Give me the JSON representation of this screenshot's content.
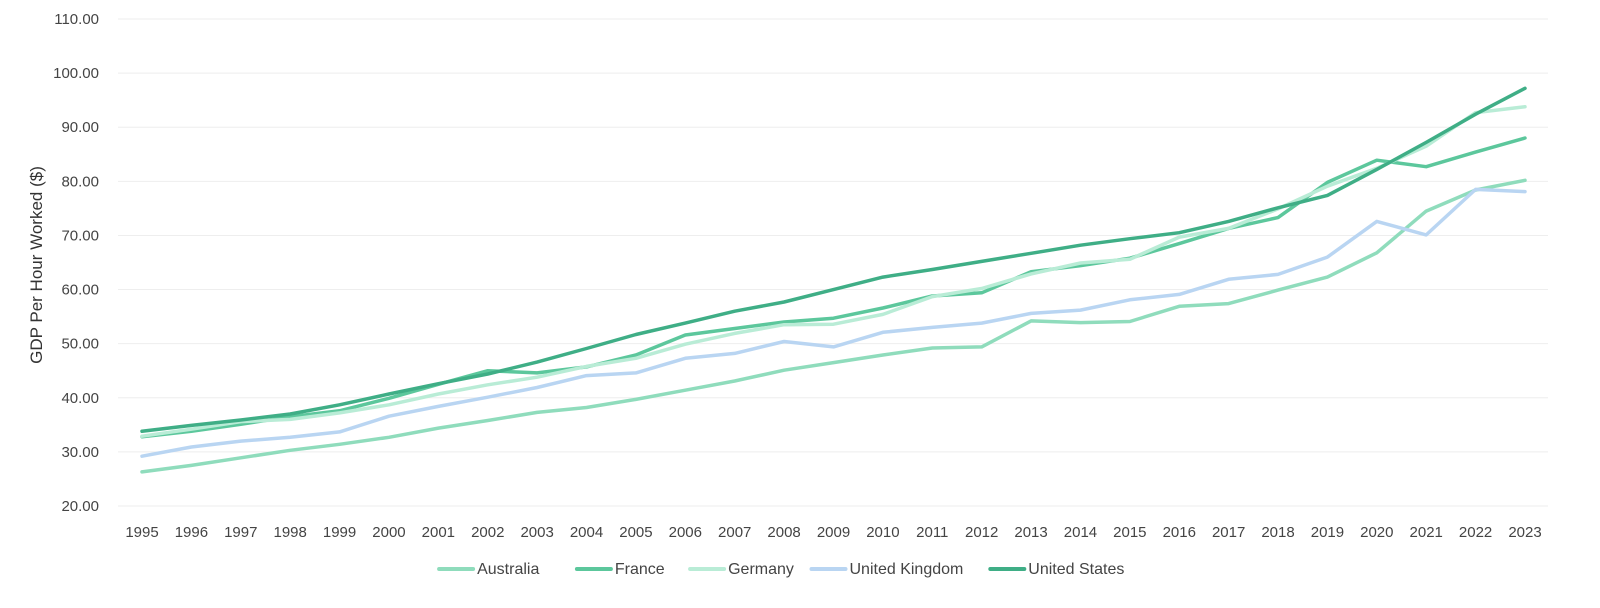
{
  "chart_data": {
    "type": "line",
    "title": "",
    "xlabel": "",
    "ylabel": "GDP Per Hour Worked ($)",
    "ylim": [
      20,
      110
    ],
    "yticks": [
      "20.00",
      "30.00",
      "40.00",
      "50.00",
      "60.00",
      "70.00",
      "80.00",
      "90.00",
      "100.00",
      "110.00"
    ],
    "grid": true,
    "legend_position": "bottom",
    "x": [
      "1995",
      "1996",
      "1997",
      "1998",
      "1999",
      "2000",
      "2001",
      "2002",
      "2003",
      "2004",
      "2005",
      "2006",
      "2007",
      "2008",
      "2009",
      "2010",
      "2011",
      "2012",
      "2013",
      "2014",
      "2015",
      "2016",
      "2017",
      "2018",
      "2019",
      "2020",
      "2021",
      "2022",
      "2023"
    ],
    "series": [
      {
        "name": "Australia",
        "color": "#8fdcbc",
        "values": [
          26.3,
          27.5,
          28.9,
          30.3,
          31.4,
          32.7,
          34.4,
          35.8,
          37.3,
          38.2,
          39.7,
          41.4,
          43.1,
          45.1,
          46.5,
          47.9,
          49.2,
          49.4,
          54.2,
          53.9,
          54.1,
          56.9,
          57.4,
          59.9,
          62.3,
          66.8,
          74.5,
          78.4,
          80.2
        ]
      },
      {
        "name": "France",
        "color": "#5cc79c",
        "values": [
          32.8,
          33.8,
          35.1,
          36.5,
          37.6,
          39.9,
          42.5,
          45.0,
          44.6,
          45.7,
          47.9,
          51.6,
          52.8,
          54.0,
          54.7,
          56.6,
          58.8,
          59.4,
          63.3,
          64.4,
          65.8,
          68.5,
          71.3,
          73.3,
          79.8,
          83.9,
          82.7,
          85.4,
          88.0
        ]
      },
      {
        "name": "Germany",
        "color": "#b9ecd6",
        "values": [
          32.9,
          34.2,
          35.6,
          36.0,
          37.2,
          38.7,
          40.7,
          42.4,
          43.8,
          45.8,
          47.3,
          49.9,
          51.9,
          53.5,
          53.6,
          55.4,
          58.7,
          60.2,
          62.9,
          64.9,
          65.6,
          69.7,
          71.3,
          74.9,
          79.1,
          82.4,
          86.5,
          92.7,
          93.8
        ]
      },
      {
        "name": "United Kingdom",
        "color": "#b9d5f2",
        "values": [
          29.2,
          30.9,
          32.0,
          32.7,
          33.7,
          36.6,
          38.4,
          40.1,
          41.9,
          44.1,
          44.6,
          47.3,
          48.2,
          50.4,
          49.4,
          52.1,
          53.0,
          53.8,
          55.6,
          56.2,
          58.1,
          59.1,
          61.9,
          62.8,
          66.0,
          72.6,
          70.1,
          78.5,
          78.1
        ]
      },
      {
        "name": "United States",
        "color": "#3fae86",
        "values": [
          33.8,
          34.9,
          35.9,
          37.0,
          38.7,
          40.7,
          42.6,
          44.4,
          46.6,
          49.1,
          51.7,
          53.8,
          56.0,
          57.7,
          60.0,
          62.3,
          63.7,
          65.2,
          66.7,
          68.2,
          69.4,
          70.5,
          72.6,
          75.1,
          77.4,
          82.2,
          87.2,
          92.4,
          97.2
        ]
      }
    ]
  }
}
